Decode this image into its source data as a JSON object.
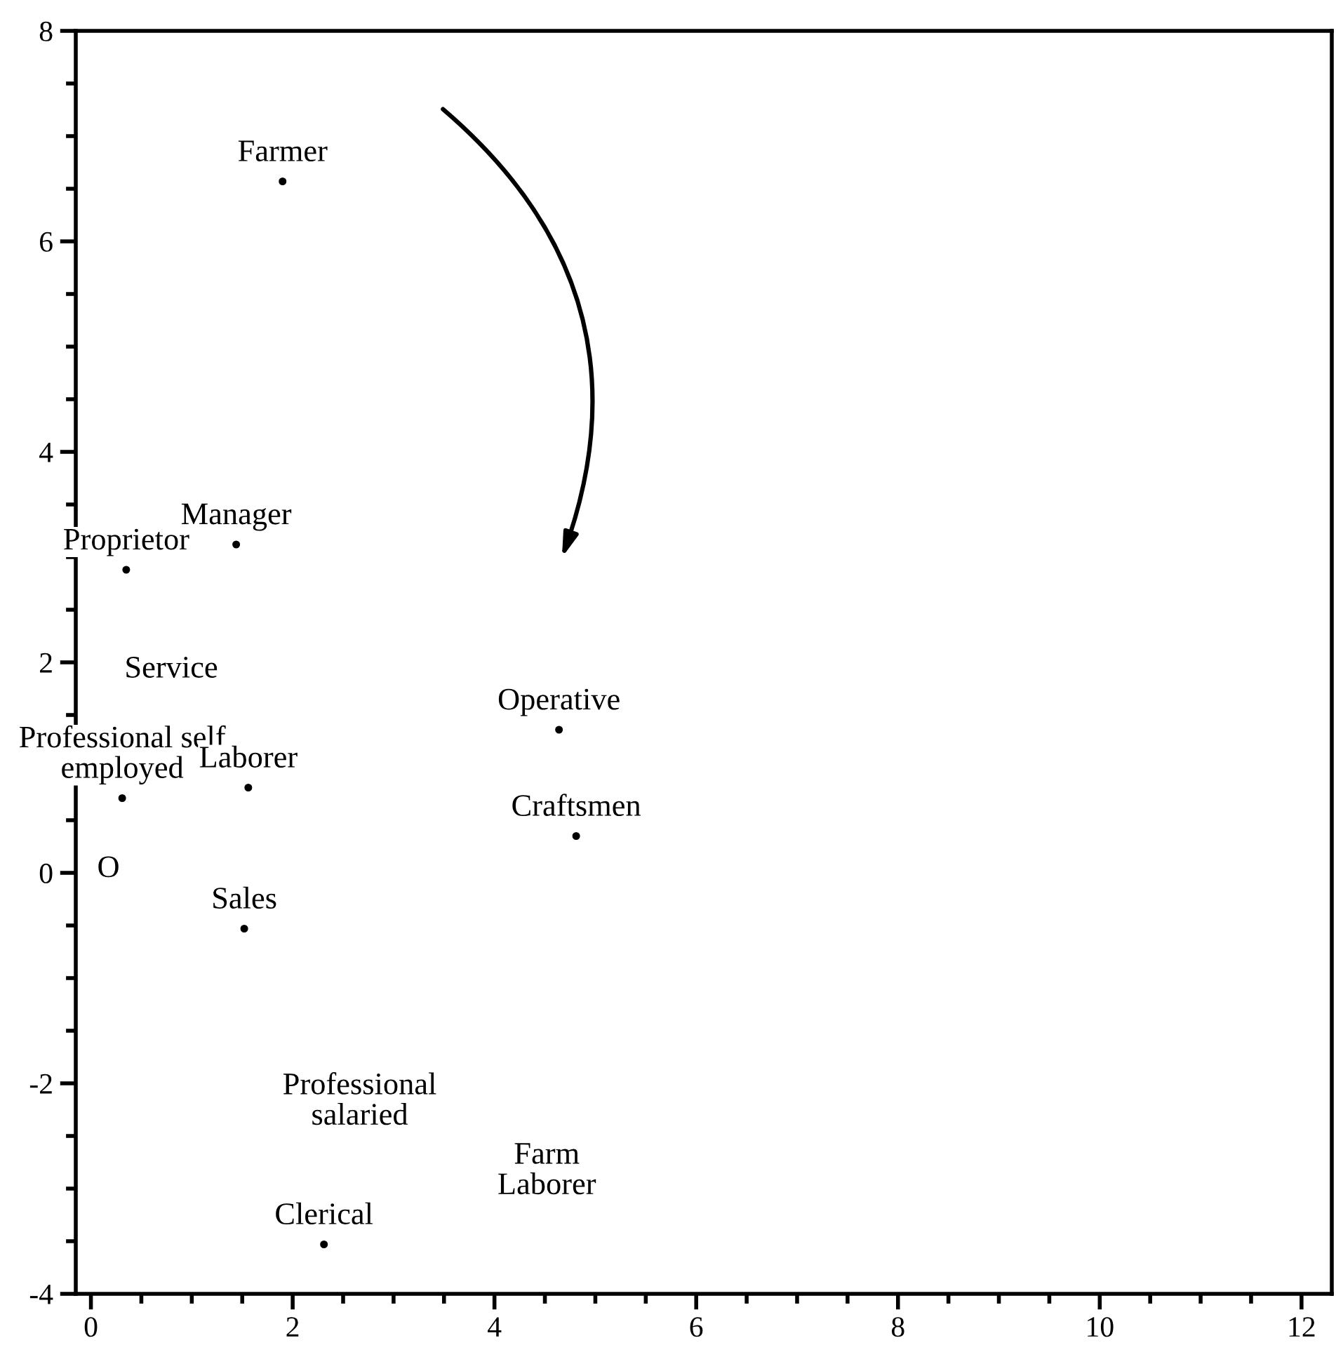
{
  "chart_data": {
    "type": "scatter",
    "x": [
      1.9,
      1.44,
      0.35,
      0.31,
      1.56,
      4.64,
      4.81,
      1.52,
      2.31
    ],
    "series": [
      {
        "color": "#000000",
        "values": [
          6.57,
          3.12,
          2.88,
          0.71,
          0.81,
          1.36,
          0.35,
          -0.53,
          -3.53
        ]
      }
    ],
    "marker": "circle",
    "xlim": [
      -0.15,
      12.3
    ],
    "ylim": [
      -4,
      8
    ],
    "xticks": [
      0,
      {
        "value": 0.5,
        "label": null
      },
      {
        "value": 1,
        "label": null
      },
      {
        "value": 1.5,
        "label": null
      },
      2,
      {
        "value": 2.5,
        "label": null
      },
      {
        "value": 3,
        "label": null
      },
      {
        "value": 3.5,
        "label": null
      },
      4,
      {
        "value": 4.5,
        "label": null
      },
      {
        "value": 5,
        "label": null
      },
      {
        "value": 5.5,
        "label": null
      },
      6,
      {
        "value": 6.5,
        "label": null
      },
      {
        "value": 7,
        "label": null
      },
      {
        "value": 7.5,
        "label": null
      },
      8,
      {
        "value": 8.5,
        "label": null
      },
      {
        "value": 9,
        "label": null
      },
      {
        "value": 9.5,
        "label": null
      },
      10,
      {
        "value": 10.5,
        "label": null
      },
      {
        "value": 11,
        "label": null
      },
      {
        "value": 11.5,
        "label": null
      },
      12
    ],
    "yticks": [
      -4,
      {
        "value": -3.5,
        "label": null
      },
      {
        "value": -3,
        "label": null
      },
      {
        "value": -2.5,
        "label": null
      },
      -2,
      {
        "value": -1.5,
        "label": null
      },
      {
        "value": -1,
        "label": null
      },
      {
        "value": -0.5,
        "label": null
      },
      0,
      {
        "value": 0.5,
        "label": null
      },
      {
        "value": 1,
        "label": null
      },
      {
        "value": 1.5,
        "label": null
      },
      2,
      {
        "value": 2.5,
        "label": null
      },
      {
        "value": 3,
        "label": null
      },
      {
        "value": 3.5,
        "label": null
      },
      4,
      {
        "value": 4.5,
        "label": null
      },
      {
        "value": 5,
        "label": null
      },
      {
        "value": 5.5,
        "label": null
      },
      6,
      {
        "value": 6.5,
        "label": null
      },
      {
        "value": 7,
        "label": null
      },
      {
        "value": 7.5,
        "label": null
      },
      8
    ],
    "grid": false,
    "annotations": [
      {
        "text": "Farmer",
        "x": 1.9,
        "y": 6.57
      },
      {
        "text": "Manager",
        "x": 1.44,
        "y": 3.12
      },
      {
        "text": "Proprietor",
        "x": 0.35,
        "y": 2.88
      },
      "Service",
      {
        "text": "Professional self\nemployed",
        "x": 0.31,
        "y": 0.71
      },
      {
        "text": "Laborer",
        "x": 1.56,
        "y": 0.81
      },
      {
        "text": "Operative",
        "x": 4.64,
        "y": 1.36
      },
      {
        "text": "Craftsmen",
        "x": 4.81,
        "y": 0.35
      },
      "O",
      {
        "text": "Sales",
        "x": 1.52,
        "y": -0.53
      },
      "Professional\nsalaried",
      "Farm\nLaborer",
      {
        "text": "Clerical",
        "x": 2.31,
        "y": -3.53
      }
    ]
  }
}
